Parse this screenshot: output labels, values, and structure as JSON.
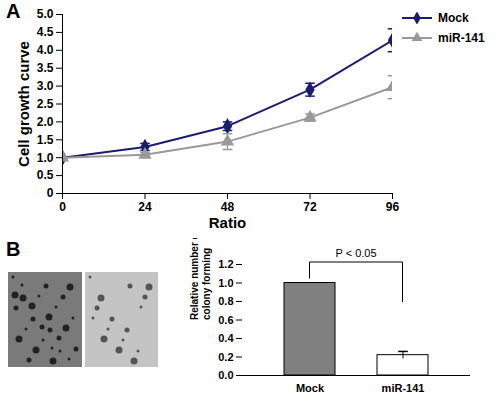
{
  "chart_data": [
    {
      "type": "line",
      "title": "A",
      "x_label": "Ratio",
      "y_label": "Cell growth curve",
      "x": [
        0,
        24,
        48,
        72,
        96
      ],
      "series": [
        {
          "name": "Mock",
          "color": "#1c1c6e",
          "marker": "diamond",
          "values": [
            1.0,
            1.3,
            1.88,
            2.9,
            4.28
          ],
          "errors": [
            0,
            0.1,
            0.12,
            0.18,
            0.32
          ]
        },
        {
          "name": "miR-141",
          "color": "#999999",
          "marker": "triangle",
          "values": [
            1.0,
            1.08,
            1.45,
            2.12,
            2.97
          ],
          "errors": [
            0,
            0.06,
            0.22,
            0.1,
            0.32
          ]
        }
      ],
      "xlim": [
        0,
        96
      ],
      "xticks": [
        0,
        24,
        48,
        72,
        96
      ],
      "ylim": [
        0,
        5
      ],
      "yticks": [
        0,
        0.5,
        {
          "value": 1,
          "label": "1.0"
        },
        1.5,
        {
          "value": 2,
          "label": "2.0"
        },
        2.5,
        {
          "value": 3,
          "label": "3.0"
        },
        3.5,
        {
          "value": 4,
          "label": "4.0"
        },
        4.5,
        {
          "value": 5,
          "label": "5.0"
        }
      ],
      "legend": "top-right",
      "grid": false
    },
    {
      "type": "bar",
      "title": "B",
      "y_label": "Relative number of the\ncolony forming",
      "categories": [
        "Mock",
        "miR-141"
      ],
      "values": [
        1.0,
        0.22
      ],
      "errors": [
        0,
        0.04
      ],
      "colors": [
        "#808080",
        "#ffffff"
      ],
      "ylim": [
        0,
        1.2
      ],
      "yticks": [
        {
          "value": 0,
          "label": "0.0"
        },
        {
          "value": 0.2,
          "label": "0.2"
        },
        {
          "value": 0.4,
          "label": "0.4"
        },
        {
          "value": 0.6,
          "label": "0.6"
        },
        {
          "value": 0.8,
          "label": "0.8"
        },
        {
          "value": 1,
          "label": "1.0"
        },
        {
          "value": 1.2,
          "label": "1.2"
        }
      ],
      "annotations": [
        "P < 0.05"
      ],
      "grid": false
    }
  ]
}
